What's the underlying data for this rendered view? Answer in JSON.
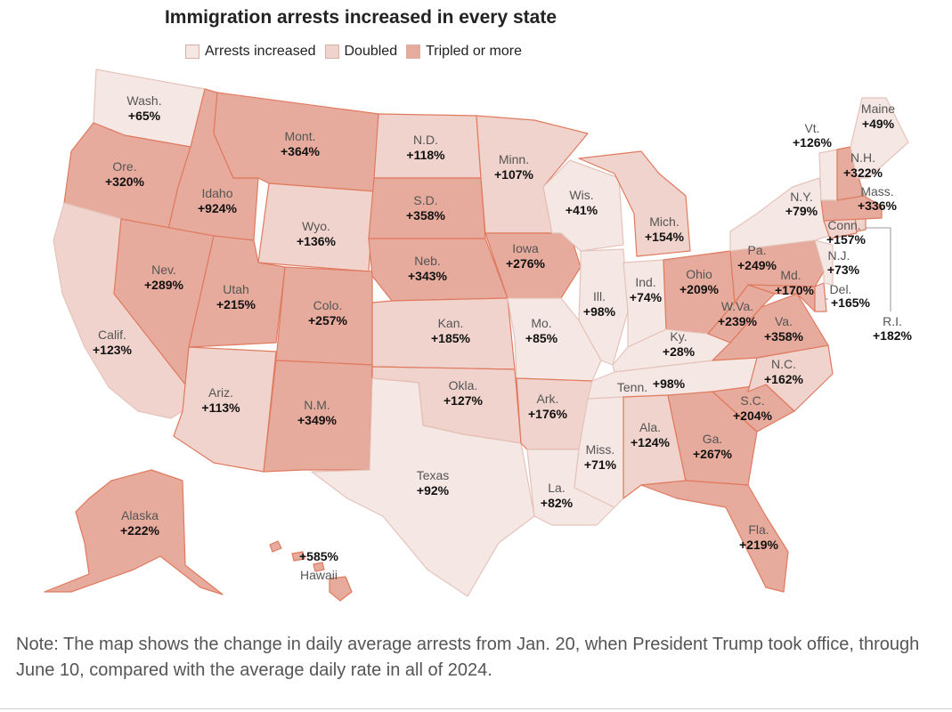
{
  "title": "Immigration arrests increased in every state",
  "legend": [
    {
      "label": "Arrests increased",
      "color": "#f5e7e4"
    },
    {
      "label": "Doubled",
      "color": "#f0d3cc"
    },
    {
      "label": "Tripled or more",
      "color": "#e6ab9c"
    }
  ],
  "colors": {
    "increased": "#f5e7e4",
    "doubled": "#f0d3cc",
    "tripled": "#e6ab9c",
    "stroke": "#e07a5f"
  },
  "states": {
    "wash": {
      "name": "Wash.",
      "value": "+65%"
    },
    "ore": {
      "name": "Ore.",
      "value": "+320%"
    },
    "calif": {
      "name": "Calif.",
      "value": "+123%"
    },
    "idaho": {
      "name": "Idaho",
      "value": "+924%"
    },
    "nev": {
      "name": "Nev.",
      "value": "+289%"
    },
    "mont": {
      "name": "Mont.",
      "value": "+364%"
    },
    "wyo": {
      "name": "Wyo.",
      "value": "+136%"
    },
    "utah": {
      "name": "Utah",
      "value": "+215%"
    },
    "colo": {
      "name": "Colo.",
      "value": "+257%"
    },
    "ariz": {
      "name": "Ariz.",
      "value": "+113%"
    },
    "nm": {
      "name": "N.M.",
      "value": "+349%"
    },
    "nd": {
      "name": "N.D.",
      "value": "+118%"
    },
    "sd": {
      "name": "S.D.",
      "value": "+358%"
    },
    "neb": {
      "name": "Neb.",
      "value": "+343%"
    },
    "kan": {
      "name": "Kan.",
      "value": "+185%"
    },
    "okla": {
      "name": "Okla.",
      "value": "+127%"
    },
    "texas": {
      "name": "Texas",
      "value": "+92%"
    },
    "minn": {
      "name": "Minn.",
      "value": "+107%"
    },
    "iowa": {
      "name": "Iowa",
      "value": "+276%"
    },
    "mo": {
      "name": "Mo.",
      "value": "+85%"
    },
    "ark": {
      "name": "Ark.",
      "value": "+176%"
    },
    "la": {
      "name": "La.",
      "value": "+82%"
    },
    "wis": {
      "name": "Wis.",
      "value": "+41%"
    },
    "ill": {
      "name": "Ill.",
      "value": "+98%"
    },
    "mich": {
      "name": "Mich.",
      "value": "+154%"
    },
    "ind": {
      "name": "Ind.",
      "value": "+74%"
    },
    "ohio": {
      "name": "Ohio",
      "value": "+209%"
    },
    "ky": {
      "name": "Ky.",
      "value": "+28%"
    },
    "tenn": {
      "name": "Tenn.",
      "value": "+98%"
    },
    "miss": {
      "name": "Miss.",
      "value": "+71%"
    },
    "ala": {
      "name": "Ala.",
      "value": "+124%"
    },
    "ga": {
      "name": "Ga.",
      "value": "+267%"
    },
    "fla": {
      "name": "Fla.",
      "value": "+219%"
    },
    "sc": {
      "name": "S.C.",
      "value": "+204%"
    },
    "nc": {
      "name": "N.C.",
      "value": "+162%"
    },
    "va": {
      "name": "Va.",
      "value": "+358%"
    },
    "wva": {
      "name": "W.Va.",
      "value": "+239%"
    },
    "pa": {
      "name": "Pa.",
      "value": "+249%"
    },
    "md": {
      "name": "Md.",
      "value": "+170%"
    },
    "del": {
      "name": "Del.",
      "value": "+165%"
    },
    "nj": {
      "name": "N.J.",
      "value": "+73%"
    },
    "ny": {
      "name": "N.Y.",
      "value": "+79%"
    },
    "conn": {
      "name": "Conn.",
      "value": "+157%"
    },
    "ri": {
      "name": "R.I.",
      "value": "+182%"
    },
    "mass": {
      "name": "Mass.",
      "value": "+336%"
    },
    "vt": {
      "name": "Vt.",
      "value": "+126%"
    },
    "nh": {
      "name": "N.H.",
      "value": "+322%"
    },
    "maine": {
      "name": "Maine",
      "value": "+49%"
    },
    "alaska": {
      "name": "Alaska",
      "value": "+222%"
    },
    "hawaii": {
      "name": "Hawaii",
      "value": "+585%"
    }
  },
  "note": "Note: The map shows the change in daily average arrests from Jan. 20, when President Trump took office, through June 10, compared with the average daily rate in all of 2024."
}
